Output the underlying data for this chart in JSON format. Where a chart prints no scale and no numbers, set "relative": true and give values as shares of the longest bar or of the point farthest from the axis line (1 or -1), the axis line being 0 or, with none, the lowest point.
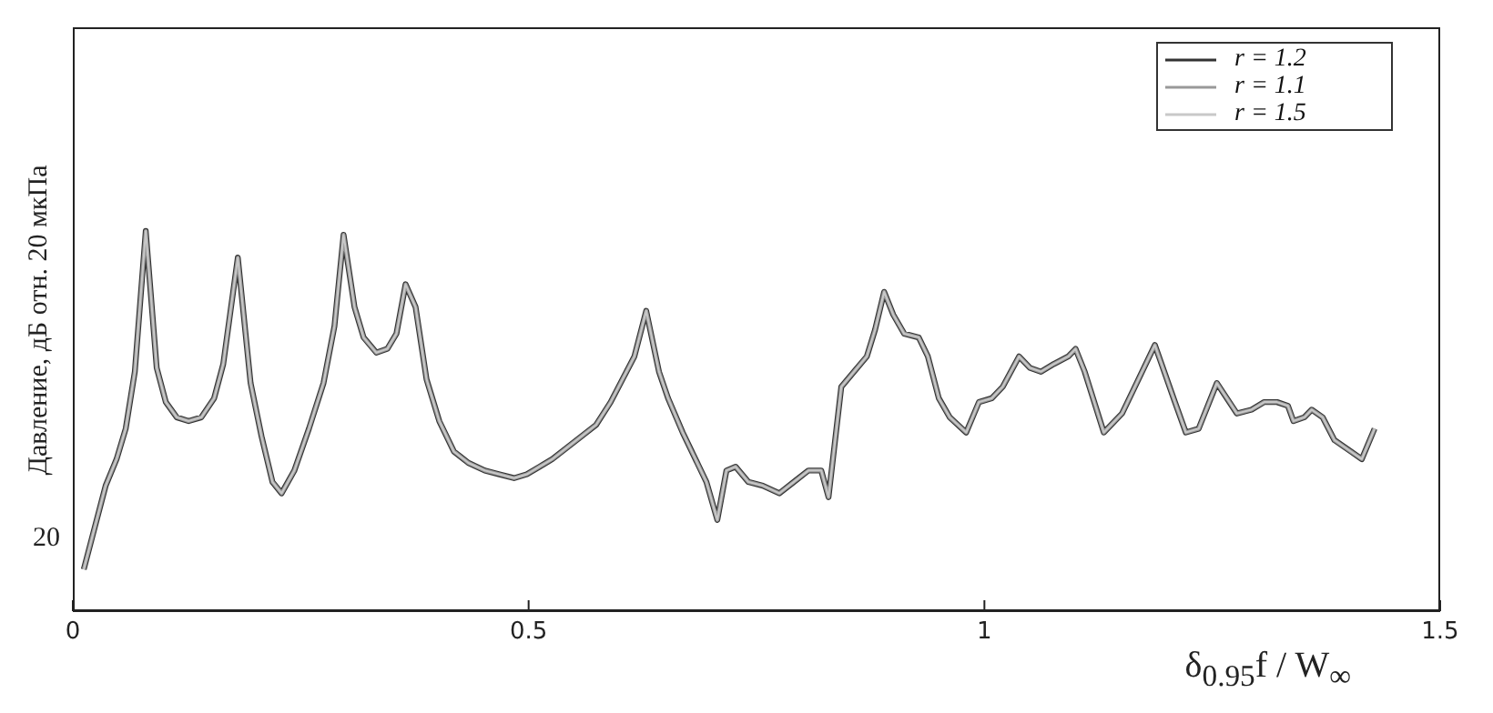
{
  "chart_data": {
    "type": "line",
    "relative": true,
    "xlabel": "δ$_{0.95}$f / W$_{∞}$",
    "ylabel": "Давление, дБ отн. 20 мкПа",
    "annotations": [
      "20"
    ],
    "x": [
      0.012,
      0.024,
      0.036,
      0.048,
      0.058,
      0.068,
      0.08,
      0.092,
      0.102,
      0.114,
      0.127,
      0.141,
      0.155,
      0.165,
      0.181,
      0.195,
      0.207,
      0.219,
      0.229,
      0.243,
      0.259,
      0.275,
      0.287,
      0.297,
      0.309,
      0.319,
      0.333,
      0.345,
      0.355,
      0.365,
      0.376,
      0.388,
      0.402,
      0.418,
      0.434,
      0.452,
      0.468,
      0.484,
      0.498,
      0.512,
      0.526,
      0.542,
      0.558,
      0.574,
      0.59,
      0.616,
      0.629,
      0.643,
      0.653,
      0.669,
      0.685,
      0.695,
      0.707,
      0.717,
      0.727,
      0.741,
      0.757,
      0.775,
      0.791,
      0.807,
      0.821,
      0.829,
      0.843,
      0.857,
      0.871,
      0.88,
      0.89,
      0.9,
      0.912,
      0.928,
      0.938,
      0.95,
      0.962,
      0.98,
      0.994,
      1.008,
      1.02,
      1.038,
      1.05,
      1.062,
      1.076,
      1.092,
      1.1,
      1.11,
      1.131,
      1.151,
      1.163,
      1.187,
      1.209,
      1.221,
      1.235,
      1.255,
      1.277,
      1.293,
      1.307,
      1.321,
      1.333,
      1.339,
      1.351,
      1.359,
      1.371,
      1.384,
      1.402,
      1.414,
      1.428
    ],
    "series": [
      {
        "name": "r = 1.2",
        "color": "#333333",
        "values": [
          0.11,
          0.22,
          0.33,
          0.4,
          0.48,
          0.63,
          1,
          0.64,
          0.55,
          0.51,
          0.5,
          0.51,
          0.56,
          0.65,
          0.93,
          0.6,
          0.46,
          0.34,
          0.31,
          0.37,
          0.48,
          0.6,
          0.75,
          0.99,
          0.8,
          0.72,
          0.68,
          0.69,
          0.73,
          0.86,
          0.8,
          0.61,
          0.5,
          0.42,
          0.39,
          0.37,
          0.36,
          0.35,
          0.36,
          0.38,
          0.4,
          0.43,
          0.46,
          0.49,
          0.55,
          0.67,
          0.79,
          0.63,
          0.56,
          0.47,
          0.39,
          0.34,
          0.24,
          0.37,
          0.38,
          0.34,
          0.33,
          0.31,
          0.34,
          0.37,
          0.37,
          0.3,
          0.59,
          0.63,
          0.67,
          0.74,
          0.84,
          0.78,
          0.73,
          0.72,
          0.67,
          0.56,
          0.51,
          0.47,
          0.55,
          0.56,
          0.59,
          0.67,
          0.64,
          0.63,
          0.65,
          0.67,
          0.69,
          0.63,
          0.47,
          0.52,
          0.58,
          0.7,
          0.55,
          0.47,
          0.48,
          0.6,
          0.52,
          0.53,
          0.55,
          0.55,
          0.54,
          0.5,
          0.51,
          0.53,
          0.51,
          0.45,
          0.42,
          0.4,
          0.48
        ]
      },
      {
        "name": "r = 1.1",
        "color": "#999999",
        "values": [
          0.11,
          0.22,
          0.33,
          0.4,
          0.48,
          0.63,
          1,
          0.64,
          0.55,
          0.51,
          0.5,
          0.51,
          0.56,
          0.65,
          0.93,
          0.6,
          0.46,
          0.34,
          0.31,
          0.37,
          0.48,
          0.6,
          0.75,
          0.99,
          0.8,
          0.72,
          0.68,
          0.69,
          0.73,
          0.86,
          0.8,
          0.61,
          0.5,
          0.42,
          0.39,
          0.37,
          0.36,
          0.35,
          0.36,
          0.38,
          0.4,
          0.43,
          0.46,
          0.49,
          0.55,
          0.67,
          0.79,
          0.63,
          0.56,
          0.47,
          0.39,
          0.34,
          0.24,
          0.37,
          0.38,
          0.34,
          0.33,
          0.31,
          0.34,
          0.37,
          0.37,
          0.3,
          0.59,
          0.63,
          0.67,
          0.74,
          0.84,
          0.78,
          0.73,
          0.72,
          0.67,
          0.56,
          0.51,
          0.47,
          0.55,
          0.56,
          0.59,
          0.67,
          0.64,
          0.63,
          0.65,
          0.67,
          0.69,
          0.63,
          0.47,
          0.52,
          0.58,
          0.7,
          0.55,
          0.47,
          0.48,
          0.6,
          0.52,
          0.53,
          0.55,
          0.55,
          0.54,
          0.5,
          0.51,
          0.53,
          0.51,
          0.45,
          0.42,
          0.4,
          0.48
        ]
      },
      {
        "name": "r = 1.5",
        "color": "#c8c8c8",
        "values": [
          0.11,
          0.22,
          0.33,
          0.4,
          0.48,
          0.63,
          1,
          0.64,
          0.55,
          0.51,
          0.5,
          0.51,
          0.56,
          0.65,
          0.93,
          0.6,
          0.46,
          0.34,
          0.31,
          0.37,
          0.48,
          0.6,
          0.75,
          0.99,
          0.8,
          0.72,
          0.68,
          0.69,
          0.73,
          0.86,
          0.8,
          0.61,
          0.5,
          0.42,
          0.39,
          0.37,
          0.36,
          0.35,
          0.36,
          0.38,
          0.4,
          0.43,
          0.46,
          0.49,
          0.55,
          0.67,
          0.79,
          0.63,
          0.56,
          0.47,
          0.39,
          0.34,
          0.24,
          0.37,
          0.38,
          0.34,
          0.33,
          0.31,
          0.34,
          0.37,
          0.37,
          0.3,
          0.59,
          0.63,
          0.67,
          0.74,
          0.84,
          0.78,
          0.73,
          0.72,
          0.67,
          0.56,
          0.51,
          0.47,
          0.55,
          0.56,
          0.59,
          0.67,
          0.64,
          0.63,
          0.65,
          0.67,
          0.69,
          0.63,
          0.47,
          0.52,
          0.58,
          0.7,
          0.55,
          0.47,
          0.48,
          0.6,
          0.52,
          0.53,
          0.55,
          0.55,
          0.54,
          0.5,
          0.51,
          0.53,
          0.51,
          0.45,
          0.42,
          0.4,
          0.48
        ]
      }
    ],
    "xlim": [
      0,
      1.5
    ],
    "xticks": [
      0,
      0.5,
      1,
      1.5
    ],
    "legend": "top right",
    "marker": "none",
    "line_style": "solid",
    "grid": false
  }
}
